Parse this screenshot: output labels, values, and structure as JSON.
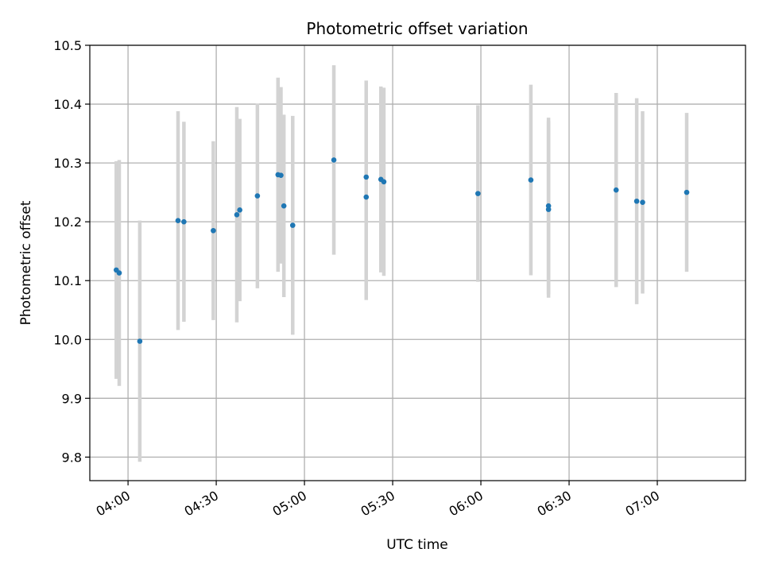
{
  "chart_data": {
    "type": "scatter",
    "title": "Photometric offset variation",
    "xlabel": "UTC time",
    "ylabel": "Photometric offset",
    "x_unit": "minutes",
    "xlim": [
      "03:47",
      "07:30"
    ],
    "ylim": [
      9.76,
      10.5
    ],
    "x_ticks": [
      "04:00",
      "04:30",
      "05:00",
      "05:30",
      "06:00",
      "06:30",
      "07:00"
    ],
    "y_ticks": [
      "9.8",
      "9.9",
      "10.0",
      "10.1",
      "10.2",
      "10.3",
      "10.4",
      "10.5"
    ],
    "grid": true,
    "colors": {
      "point": "#1f77b4",
      "errorbar": "#d3d3d3",
      "grid": "#b0b0b0"
    },
    "series": [
      {
        "points": [
          {
            "x": "03:56",
            "y": 10.118,
            "err": 0.185
          },
          {
            "x": "03:57",
            "y": 10.113,
            "err": 0.192
          },
          {
            "x": "04:04",
            "y": 9.997,
            "err": 0.205
          },
          {
            "x": "04:17",
            "y": 10.202,
            "err": 0.186
          },
          {
            "x": "04:19",
            "y": 10.2,
            "err": 0.17
          },
          {
            "x": "04:29",
            "y": 10.185,
            "err": 0.152
          },
          {
            "x": "04:37",
            "y": 10.212,
            "err": 0.183
          },
          {
            "x": "04:38",
            "y": 10.22,
            "err": 0.155
          },
          {
            "x": "04:44",
            "y": 10.244,
            "err": 0.157
          },
          {
            "x": "04:51",
            "y": 10.28,
            "err": 0.165
          },
          {
            "x": "04:52",
            "y": 10.279,
            "err": 0.15
          },
          {
            "x": "04:53",
            "y": 10.227,
            "err": 0.155
          },
          {
            "x": "04:56",
            "y": 10.194,
            "err": 0.186
          },
          {
            "x": "05:10",
            "y": 10.305,
            "err": 0.161
          },
          {
            "x": "05:21",
            "y": 10.276,
            "err": 0.164
          },
          {
            "x": "05:21",
            "y": 10.242,
            "err": 0.175
          },
          {
            "x": "05:26",
            "y": 10.272,
            "err": 0.158
          },
          {
            "x": "05:27",
            "y": 10.268,
            "err": 0.16
          },
          {
            "x": "05:59",
            "y": 10.248,
            "err": 0.15
          },
          {
            "x": "06:17",
            "y": 10.271,
            "err": 0.162
          },
          {
            "x": "06:23",
            "y": 10.227,
            "err": 0.15
          },
          {
            "x": "06:23",
            "y": 10.221,
            "err": 0.15
          },
          {
            "x": "06:46",
            "y": 10.254,
            "err": 0.165
          },
          {
            "x": "06:53",
            "y": 10.235,
            "err": 0.175
          },
          {
            "x": "06:55",
            "y": 10.233,
            "err": 0.155
          },
          {
            "x": "07:10",
            "y": 10.25,
            "err": 0.135
          }
        ]
      }
    ]
  }
}
